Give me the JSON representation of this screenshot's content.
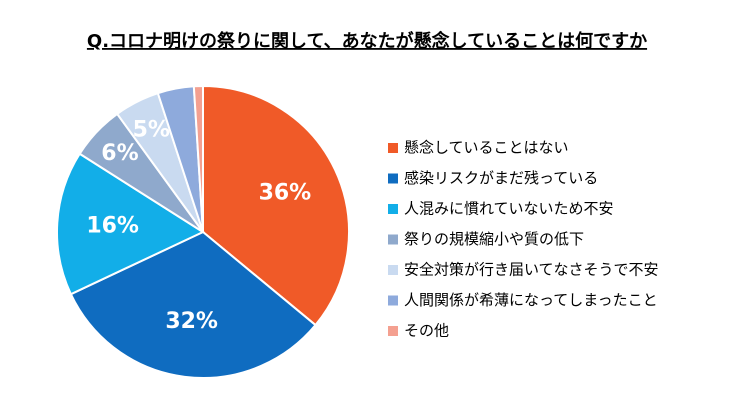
{
  "chart_data": {
    "type": "pie",
    "title": "Q.コロナ明けの祭りに関して、あなたが懸念していることは何ですか",
    "categories": [
      "懸念していることはない",
      "感染リスクがまだ残っている",
      "人混みに慣れていないため不安",
      "祭りの規模縮小や質の低下",
      "安全対策が行き届いてなさそうで不安",
      "人間関係が希薄になってしまったこと",
      "その他"
    ],
    "values": [
      36,
      32,
      16,
      6,
      5,
      4,
      1
    ],
    "value_labels": [
      "36%",
      "32%",
      "16%",
      "6%",
      "5%",
      null,
      null
    ],
    "colors": [
      "#f05a28",
      "#0f6cc0",
      "#12aee8",
      "#8fa9cc",
      "#c9daf0",
      "#8eaadc",
      "#f4a090"
    ],
    "legend": "right"
  }
}
